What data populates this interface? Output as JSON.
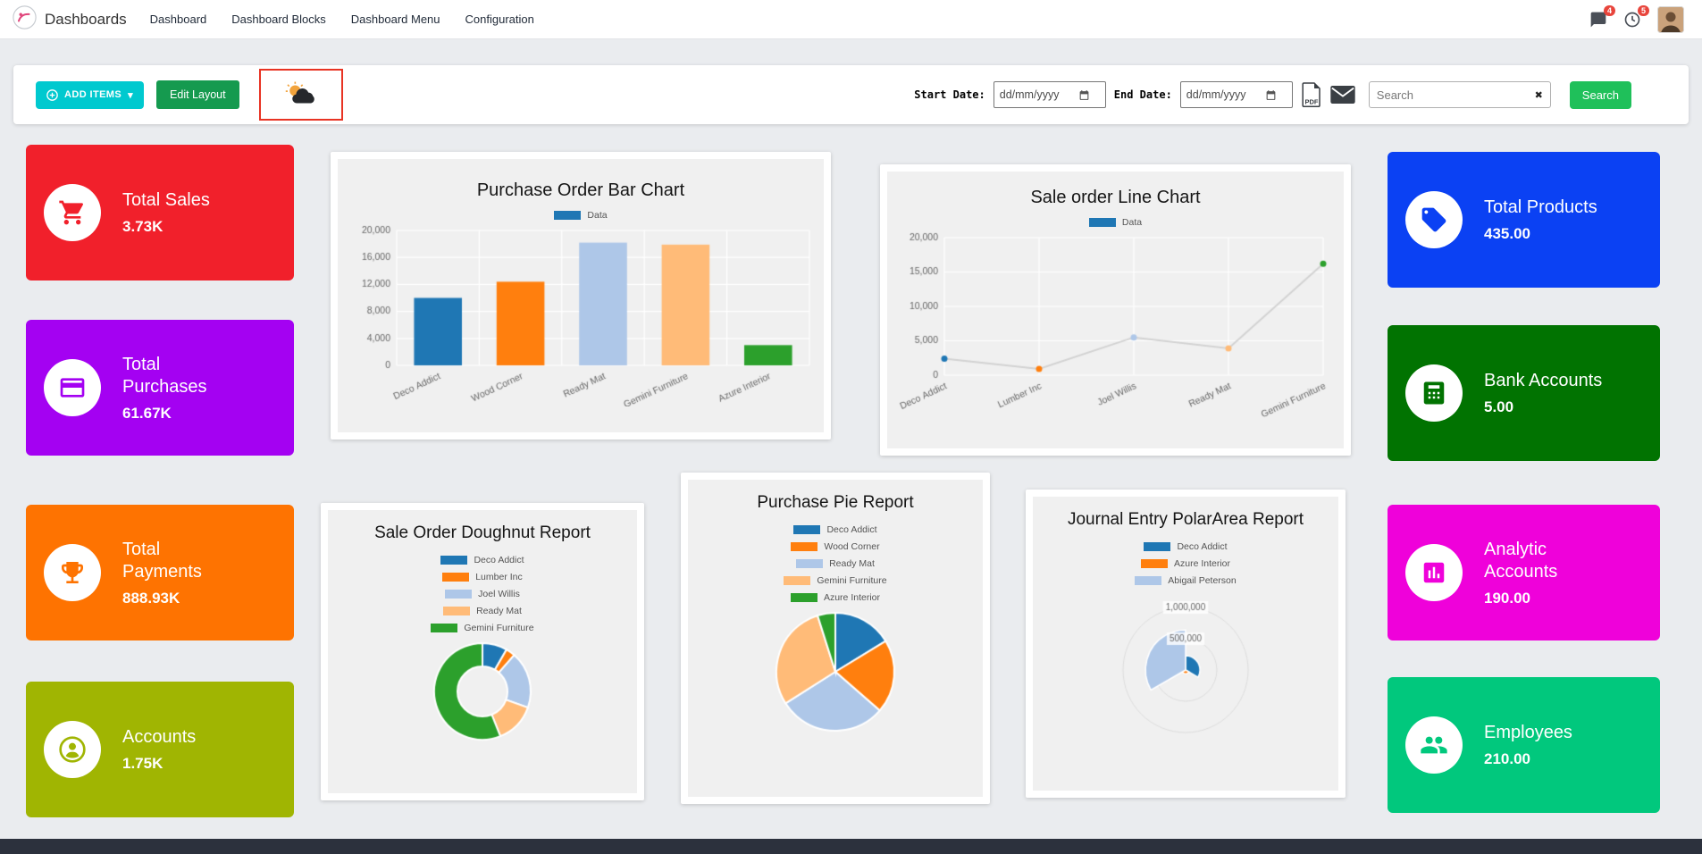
{
  "nav": {
    "brand": "Dashboards",
    "items": [
      "Dashboard",
      "Dashboard Blocks",
      "Dashboard Menu",
      "Configuration"
    ],
    "messages_badge": "4",
    "activities_badge": "5"
  },
  "toolbar": {
    "add_items": "ADD ITEMS",
    "caret": "▾",
    "edit_layout": "Edit Layout",
    "start_date_label": "Start Date:",
    "end_date_label": "End Date:",
    "date_placeholder": "dd/mm/yyyy",
    "search_placeholder": "Search",
    "clear_icon": "✖",
    "search_button": "Search"
  },
  "tiles_left": [
    {
      "title": "Total Sales",
      "value": "3.73K",
      "color": "#f1202b",
      "icon": "cart-icon"
    },
    {
      "title": "Total Purchases",
      "value": "61.67K",
      "color": "#a401f2",
      "icon": "credit-card-icon"
    },
    {
      "title": "Total Payments",
      "value": "888.93K",
      "color": "#fe7301",
      "icon": "trophy-icon"
    },
    {
      "title": "Accounts",
      "value": "1.75K",
      "color": "#a0b502",
      "icon": "user-icon"
    }
  ],
  "tiles_right": [
    {
      "title": "Total Products",
      "value": "435.00",
      "color": "#0b41f3",
      "icon": "tag-icon"
    },
    {
      "title": "Bank Accounts",
      "value": "5.00",
      "color": "#017301",
      "icon": "calculator-icon"
    },
    {
      "title": "Analytic Accounts",
      "value": "190.00",
      "color": "#ef01da",
      "icon": "bar-chart-icon"
    },
    {
      "title": "Employees",
      "value": "210.00",
      "color": "#01c87d",
      "icon": "people-icon"
    }
  ],
  "chart_data": [
    {
      "type": "bar",
      "title": "Purchase Order Bar Chart",
      "legend": [
        "Data"
      ],
      "legend_color": "#1f77b4",
      "categories": [
        "Deco Addict",
        "Wood Corner",
        "Ready Mat",
        "Gemini Furniture",
        "Azure Interior"
      ],
      "values": [
        10000,
        12400,
        18200,
        17900,
        3000
      ],
      "colors": [
        "#1f77b4",
        "#ff7f0e",
        "#aec7e8",
        "#ffbb78",
        "#2ca02c"
      ],
      "ylim": [
        0,
        20000
      ],
      "ytick_step": 4000,
      "grid": true,
      "legend_position": "top"
    },
    {
      "type": "line",
      "title": "Sale order Line Chart",
      "legend": [
        "Data"
      ],
      "legend_color": "#1f77b4",
      "categories": [
        "Deco Addict",
        "Lumber Inc",
        "Joel Willis",
        "Ready Mat",
        "Gemini Furniture"
      ],
      "values": [
        2400,
        900,
        5500,
        3900,
        16200
      ],
      "point_colors": [
        "#1f77b4",
        "#ff7f0e",
        "#aec7e8",
        "#ffbb78",
        "#2ca02c"
      ],
      "line_color": "#d2d2d2",
      "ylim": [
        0,
        20000
      ],
      "ytick_step": 5000,
      "grid": true,
      "legend_position": "top"
    },
    {
      "type": "doughnut",
      "title": "Sale Order Doughnut Report",
      "labels": [
        "Deco Addict",
        "Lumber Inc",
        "Joel Willis",
        "Ready Mat",
        "Gemini Furniture"
      ],
      "values": [
        2400,
        900,
        5500,
        3900,
        16200
      ],
      "colors": [
        "#1f77b4",
        "#ff7f0e",
        "#aec7e8",
        "#ffbb78",
        "#2ca02c"
      ],
      "legend_position": "top"
    },
    {
      "type": "pie",
      "title": "Purchase Pie Report",
      "labels": [
        "Deco Addict",
        "Wood Corner",
        "Ready Mat",
        "Gemini Furniture",
        "Azure Interior"
      ],
      "values": [
        10000,
        12400,
        18200,
        17900,
        3000
      ],
      "colors": [
        "#1f77b4",
        "#ff7f0e",
        "#aec7e8",
        "#ffbb78",
        "#2ca02c"
      ],
      "legend_position": "top"
    },
    {
      "type": "polarArea",
      "title": "Journal Entry PolarArea Report",
      "labels": [
        "Deco Addict",
        "Azure Interior",
        "Abigail Peterson"
      ],
      "values": [
        230000,
        60000,
        640000
      ],
      "colors": [
        "#1f77b4",
        "#ff7f0e",
        "#aec7e8"
      ],
      "rmax": 1000000,
      "rticks": [
        500000,
        1000000
      ],
      "legend_position": "top"
    }
  ]
}
